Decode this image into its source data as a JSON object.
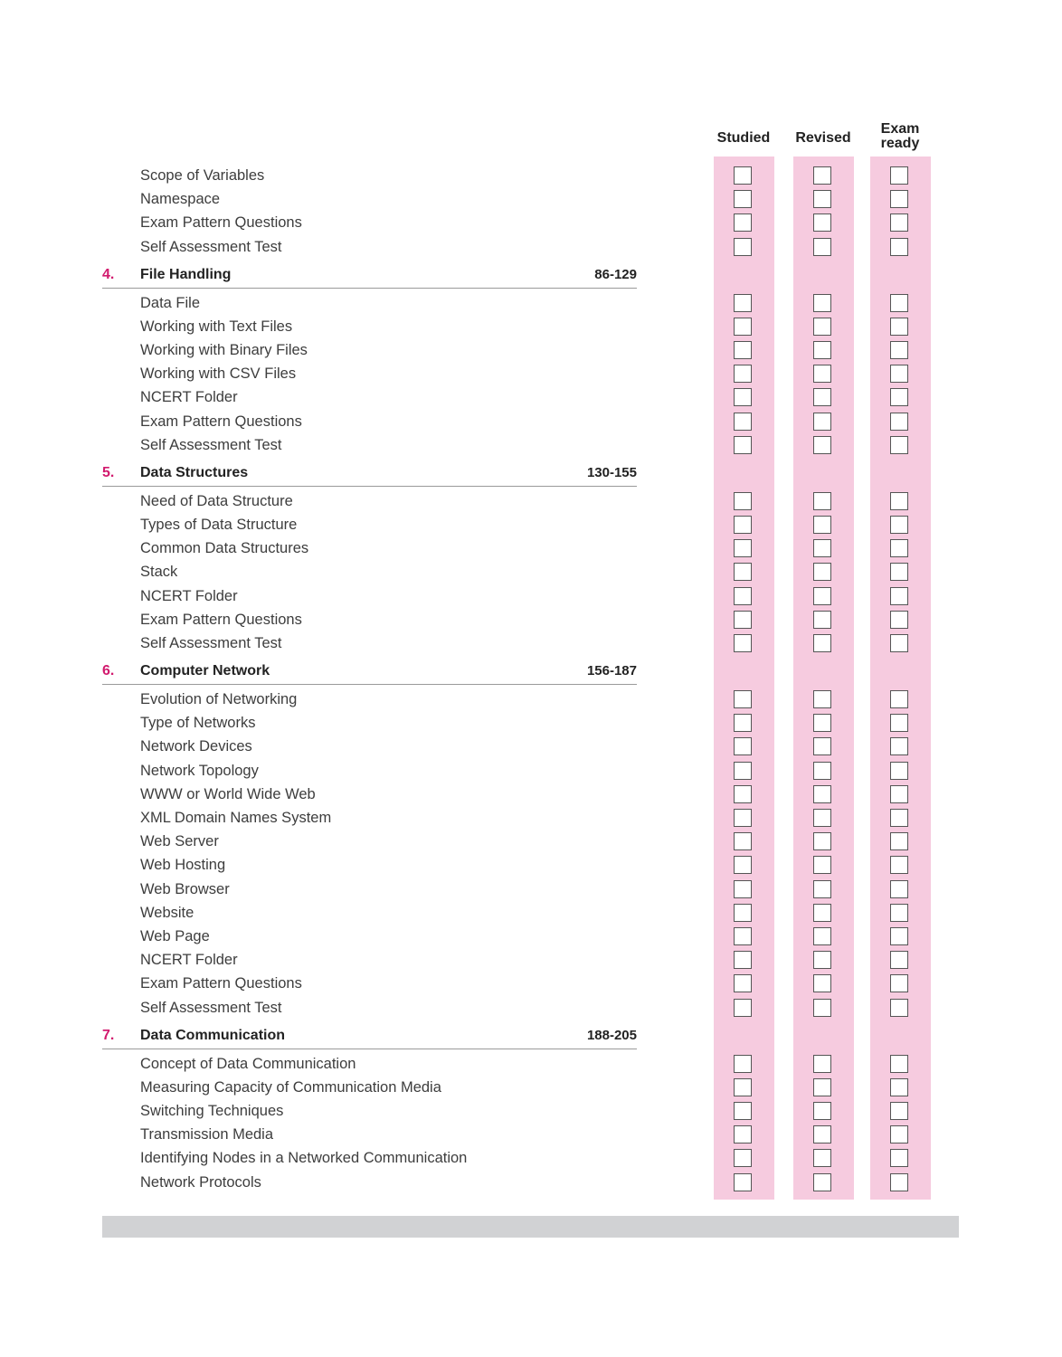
{
  "columns": [
    "Studied",
    "Revised",
    "Exam ready"
  ],
  "column_colors": {
    "band": "#f6cbdf",
    "chapter_number": "#d21a6e",
    "footer_bar": "#d1d2d4"
  },
  "continued_items": [
    "Scope of Variables",
    "Namespace",
    "Exam Pattern Questions",
    "Self Assessment Test"
  ],
  "chapters": [
    {
      "number": "4.",
      "title": "File Handling",
      "pages": "86-129",
      "items": [
        "Data File",
        "Working with Text Files",
        "Working with Binary Files",
        "Working with CSV Files",
        "NCERT Folder",
        "Exam Pattern Questions",
        "Self Assessment Test"
      ]
    },
    {
      "number": "5.",
      "title": "Data Structures",
      "pages": "130-155",
      "items": [
        "Need of Data Structure",
        "Types of Data Structure",
        "Common Data Structures",
        "Stack",
        "NCERT Folder",
        "Exam Pattern Questions",
        "Self Assessment Test"
      ]
    },
    {
      "number": "6.",
      "title": "Computer Network",
      "pages": "156-187",
      "items": [
        "Evolution of Networking",
        "Type of Networks",
        "Network Devices",
        "Network Topology",
        "WWW or World Wide Web",
        "XML Domain Names System",
        "Web Server",
        "Web Hosting",
        "Web Browser",
        "Website",
        "Web Page",
        "NCERT Folder",
        "Exam Pattern Questions",
        "Self Assessment Test"
      ]
    },
    {
      "number": "7.",
      "title": "Data Communication",
      "pages": "188-205",
      "items": [
        "Concept of Data Communication",
        "Measuring Capacity of Communication Media",
        "Switching Techniques",
        "Transmission Media",
        "Identifying Nodes in a Networked Communication",
        "Network Protocols"
      ]
    }
  ]
}
